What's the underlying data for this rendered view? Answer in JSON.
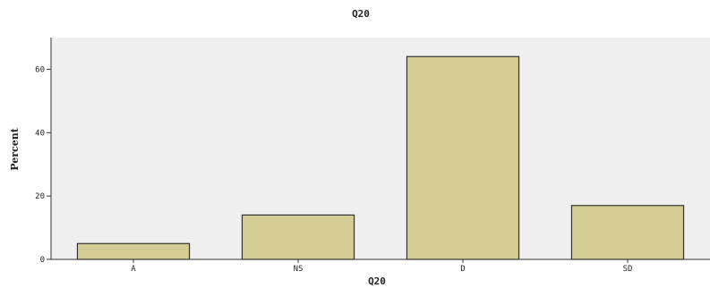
{
  "chart_data": {
    "type": "bar",
    "title": "Q20",
    "xlabel": "Q20",
    "ylabel": "Percent",
    "categories": [
      "A",
      "NS",
      "D",
      "SD"
    ],
    "values": [
      5,
      14,
      64,
      17
    ],
    "ylim": [
      0,
      70
    ],
    "yticks": [
      "0",
      "20",
      "40",
      "60"
    ],
    "grid": false,
    "colors": {
      "bar_fill": "#d3cd95",
      "bar_stroke": "#333333",
      "plot_background": "#efefef"
    }
  }
}
